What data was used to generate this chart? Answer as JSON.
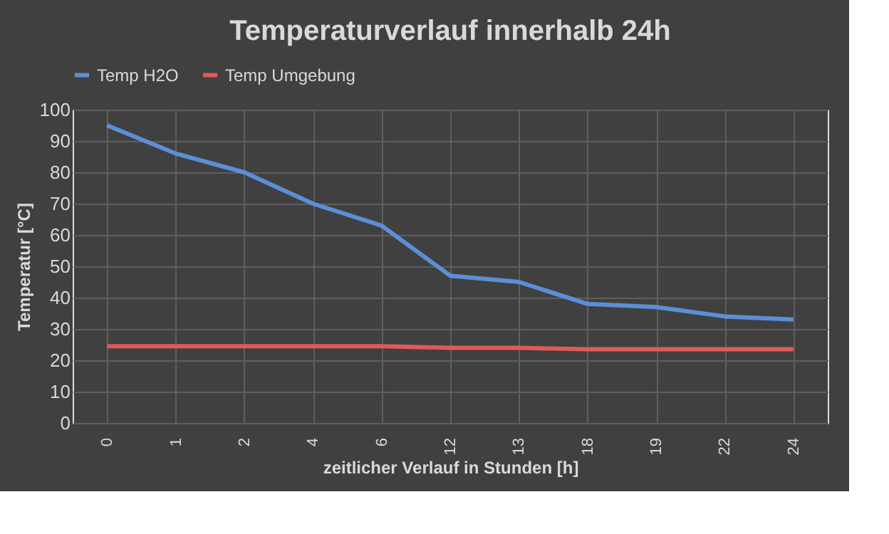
{
  "chart_data": {
    "type": "line",
    "title": "Temperaturverlauf innerhalb 24h",
    "xlabel": "zeitlicher Verlauf in Stunden [h]",
    "ylabel": "Temperatur [°C]",
    "categories": [
      "0",
      "1",
      "2",
      "4",
      "6",
      "12",
      "13",
      "18",
      "19",
      "22",
      "24"
    ],
    "series": [
      {
        "name": "Temp H2O",
        "color": "#5b8fd6",
        "values": [
          95,
          86,
          80,
          70,
          63,
          47,
          45,
          38,
          37,
          34,
          33
        ]
      },
      {
        "name": "Temp Umgebung",
        "color": "#e05a5a",
        "values": [
          24.5,
          24.5,
          24.5,
          24.5,
          24.5,
          24,
          24,
          23.5,
          23.5,
          23.5,
          23.5
        ]
      }
    ],
    "ylim": [
      0,
      100
    ],
    "yticks": [
      0,
      10,
      20,
      30,
      40,
      50,
      60,
      70,
      80,
      90,
      100
    ],
    "grid": true,
    "legend": "top",
    "marker": "none",
    "line_style": "solid"
  }
}
